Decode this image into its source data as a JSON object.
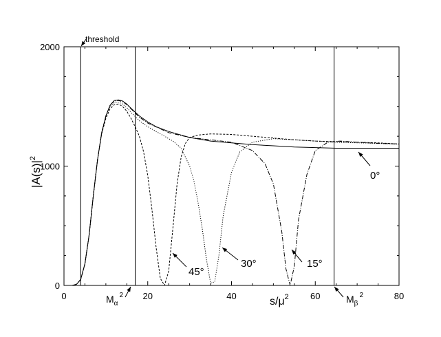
{
  "chart_data": {
    "type": "line",
    "xlabel": "s/μ²",
    "ylabel": "|A(s)|²",
    "xlim": [
      0,
      80
    ],
    "ylim": [
      0,
      2000
    ],
    "x_ticks": [
      0,
      20,
      40,
      60,
      80
    ],
    "y_ticks": [
      0,
      1000,
      2000
    ],
    "grid": false,
    "vertical_lines": [
      {
        "name": "threshold",
        "x": 4
      },
      {
        "name": "M_alpha",
        "x": 17
      },
      {
        "name": "M_beta",
        "x": 64.5
      }
    ],
    "series": [
      {
        "name": "0°",
        "style": "solid",
        "x": [
          2,
          3,
          4,
          5,
          6,
          7,
          8,
          9,
          10,
          11,
          12,
          13,
          14,
          15,
          16,
          18,
          20,
          22,
          25,
          30,
          35,
          40,
          45,
          50,
          55,
          60,
          65,
          70,
          75,
          80
        ],
        "y": [
          0,
          10,
          50,
          180,
          420,
          750,
          1050,
          1280,
          1420,
          1510,
          1550,
          1555,
          1545,
          1520,
          1485,
          1420,
          1370,
          1330,
          1290,
          1240,
          1210,
          1195,
          1180,
          1170,
          1160,
          1155,
          1150,
          1150,
          1150,
          1150
        ]
      },
      {
        "name": "15°",
        "style": "dash-dot",
        "x": [
          2,
          3,
          4,
          5,
          6,
          7,
          8,
          9,
          10,
          11,
          12,
          13,
          14,
          15,
          16,
          18,
          20,
          25,
          30,
          35,
          40,
          45,
          48,
          50,
          52,
          53,
          54,
          55,
          56,
          58,
          60,
          63,
          66,
          70,
          75,
          80
        ],
        "y": [
          0,
          10,
          50,
          180,
          420,
          750,
          1050,
          1280,
          1420,
          1510,
          1545,
          1550,
          1540,
          1515,
          1480,
          1410,
          1360,
          1280,
          1240,
          1220,
          1200,
          1130,
          1020,
          850,
          450,
          140,
          0,
          160,
          550,
          930,
          1130,
          1200,
          1210,
          1200,
          1190,
          1185
        ]
      },
      {
        "name": "30°",
        "style": "dotted",
        "x": [
          2,
          3,
          4,
          5,
          6,
          7,
          8,
          9,
          10,
          11,
          12,
          13,
          14,
          15,
          16,
          18,
          20,
          22,
          24,
          26,
          28,
          30,
          31,
          32,
          33,
          34,
          35,
          36,
          37,
          38,
          40,
          42,
          45,
          50,
          55,
          60,
          65,
          70,
          75,
          80
        ],
        "y": [
          0,
          10,
          50,
          180,
          420,
          750,
          1050,
          1280,
          1420,
          1500,
          1530,
          1535,
          1520,
          1490,
          1450,
          1380,
          1330,
          1290,
          1250,
          1210,
          1150,
          1000,
          880,
          700,
          480,
          220,
          20,
          30,
          250,
          580,
          950,
          1120,
          1200,
          1230,
          1220,
          1210,
          1200,
          1195,
          1190,
          1185
        ]
      },
      {
        "name": "45°",
        "style": "dashed",
        "x": [
          2,
          3,
          4,
          5,
          6,
          7,
          8,
          9,
          10,
          11,
          12,
          13,
          14,
          15,
          16,
          17,
          18,
          19,
          20,
          21,
          22,
          23,
          24,
          25,
          26,
          27,
          28,
          29,
          30,
          32,
          35,
          40,
          45,
          50,
          55,
          60,
          65,
          70,
          75,
          80
        ],
        "y": [
          0,
          10,
          50,
          180,
          420,
          750,
          1050,
          1270,
          1400,
          1480,
          1515,
          1520,
          1500,
          1460,
          1400,
          1330,
          1250,
          1120,
          920,
          640,
          320,
          60,
          0,
          120,
          480,
          850,
          1080,
          1190,
          1240,
          1260,
          1270,
          1265,
          1250,
          1235,
          1220,
          1210,
          1205,
          1200,
          1195,
          1185
        ]
      }
    ],
    "annotations": [
      {
        "text": "threshold"
      },
      {
        "text": "M",
        "sub": "α",
        "sup": "2"
      },
      {
        "text": "M",
        "sub": "β",
        "sup": "2"
      },
      {
        "text": "0°"
      },
      {
        "text": "15°"
      },
      {
        "text": "30°"
      },
      {
        "text": "45°"
      }
    ]
  }
}
